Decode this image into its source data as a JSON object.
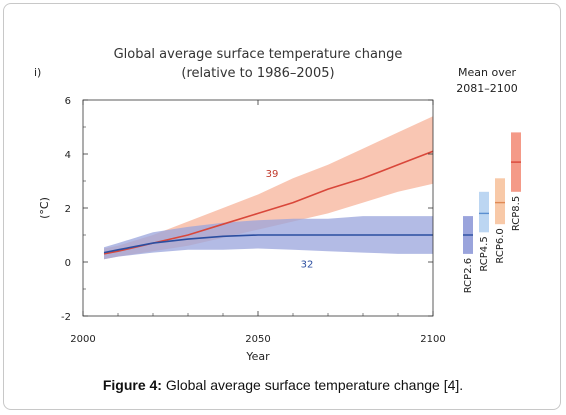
{
  "chart_data": {
    "type": "line",
    "panel_label": "i)",
    "title": "Global average surface temperature change",
    "subtitle": "(relative to 1986–2005)",
    "xlabel": "Year",
    "ylabel": "(°C)",
    "xlim": [
      2000,
      2100
    ],
    "ylim": [
      -2,
      6
    ],
    "x_ticks": [
      "2000",
      "2050",
      "2100"
    ],
    "y_ticks": [
      "6",
      "4",
      "2",
      "0",
      "-2"
    ],
    "series": [
      {
        "color": "#d9473a",
        "band_color": "#f7b39a",
        "x": [
          2006,
          2010,
          2020,
          2030,
          2040,
          2050,
          2060,
          2070,
          2080,
          2090,
          2100
        ],
        "mean": [
          0.3,
          0.4,
          0.7,
          1.0,
          1.4,
          1.8,
          2.2,
          2.7,
          3.1,
          3.6,
          4.1
        ],
        "low": [
          0.1,
          0.2,
          0.4,
          0.6,
          0.9,
          1.2,
          1.5,
          1.8,
          2.2,
          2.6,
          2.9
        ],
        "high": [
          0.5,
          0.6,
          1.0,
          1.5,
          2.0,
          2.5,
          3.1,
          3.6,
          4.2,
          4.8,
          5.4
        ]
      },
      {
        "color": "#2b4ea0",
        "band_color": "#9aa4dc",
        "x": [
          2006,
          2010,
          2020,
          2030,
          2040,
          2050,
          2060,
          2070,
          2080,
          2090,
          2100
        ],
        "mean": [
          0.35,
          0.45,
          0.7,
          0.85,
          0.95,
          1.0,
          1.0,
          1.0,
          1.0,
          1.0,
          1.0
        ],
        "low": [
          0.1,
          0.2,
          0.35,
          0.45,
          0.45,
          0.5,
          0.45,
          0.4,
          0.35,
          0.3,
          0.3
        ],
        "high": [
          0.55,
          0.7,
          1.1,
          1.3,
          1.45,
          1.55,
          1.6,
          1.6,
          1.7,
          1.7,
          1.7
        ]
      }
    ],
    "annotations": [
      {
        "text": "39",
        "x": 2054,
        "y": 3.15,
        "color": "#c0392b"
      },
      {
        "text": "32",
        "x": 2064,
        "y": -0.2,
        "color": "#2b4ea0"
      }
    ],
    "mean_panel": {
      "title_line1": "Mean over",
      "title_line2": "2081–2100",
      "bars": [
        {
          "label": "RCP2.6",
          "low": 0.3,
          "high": 1.7,
          "mean": 1.0,
          "fill": "#9aa4dc",
          "line": "#2b4ea0"
        },
        {
          "label": "RCP4.5",
          "low": 1.1,
          "high": 2.6,
          "mean": 1.8,
          "fill": "#bcd6f2",
          "line": "#5b8fd0"
        },
        {
          "label": "RCP6.0",
          "low": 1.4,
          "high": 3.1,
          "mean": 2.2,
          "fill": "#f8c9a8",
          "line": "#e08a55"
        },
        {
          "label": "RCP8.5",
          "low": 2.6,
          "high": 4.8,
          "mean": 3.7,
          "fill": "#f49a88",
          "line": "#d9473a"
        }
      ]
    }
  },
  "caption": {
    "label": "Figure 4:",
    "text": " Global average surface temperature change [4]."
  }
}
